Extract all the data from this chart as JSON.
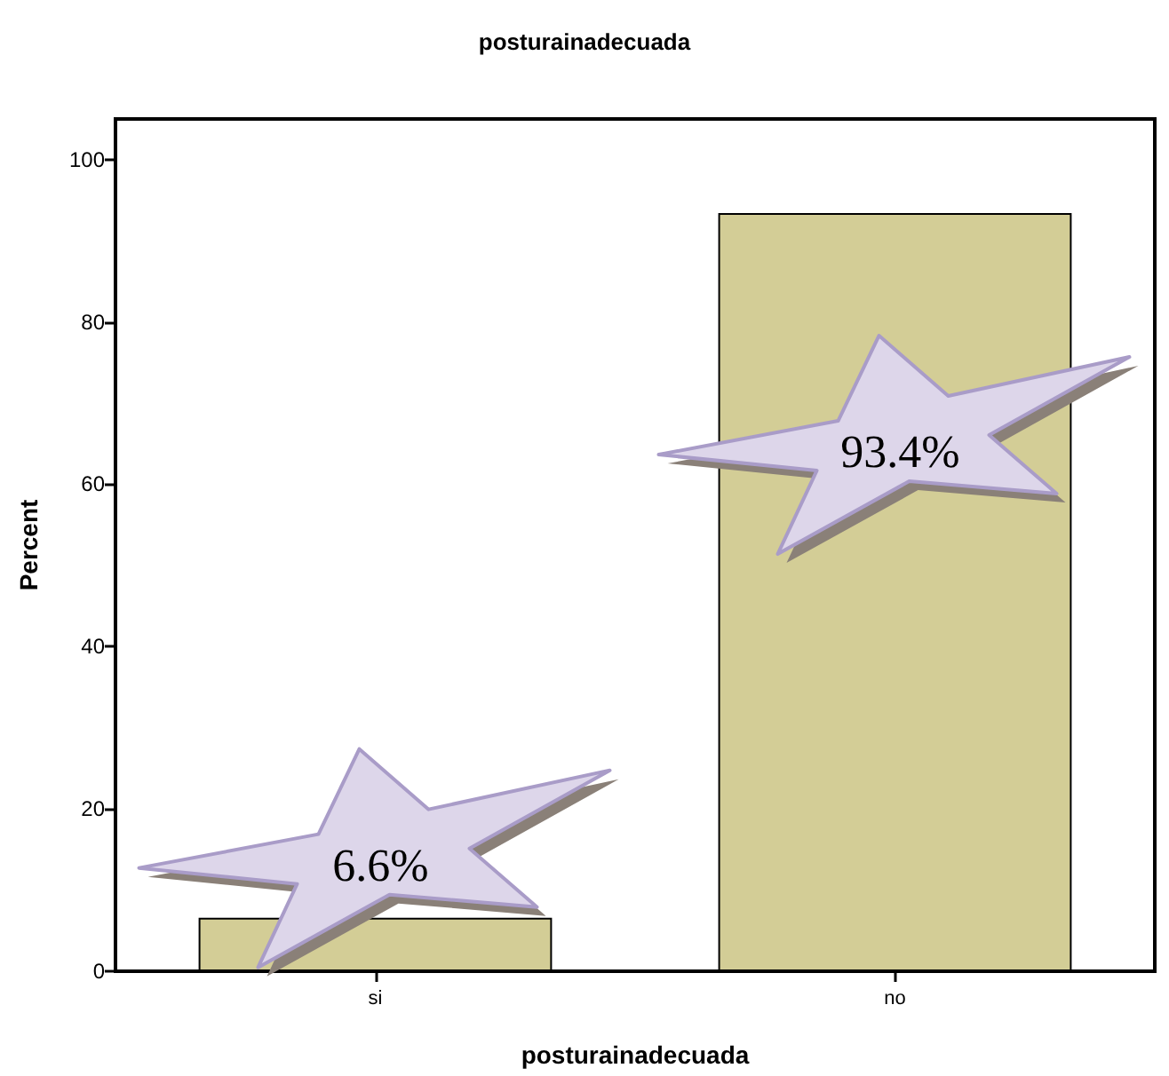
{
  "chart_data": {
    "type": "bar",
    "title": "posturainadecuada",
    "xlabel": "posturainadecuada",
    "ylabel": "Percent",
    "categories": [
      "si",
      "no"
    ],
    "values": [
      6.6,
      93.4
    ],
    "color": "#d3cd96",
    "value_labels": [
      "6.6%",
      "93.4%"
    ],
    "ylim": [
      0,
      105
    ],
    "yticks": [
      0,
      20,
      40,
      60,
      80,
      100
    ],
    "grid": false
  }
}
